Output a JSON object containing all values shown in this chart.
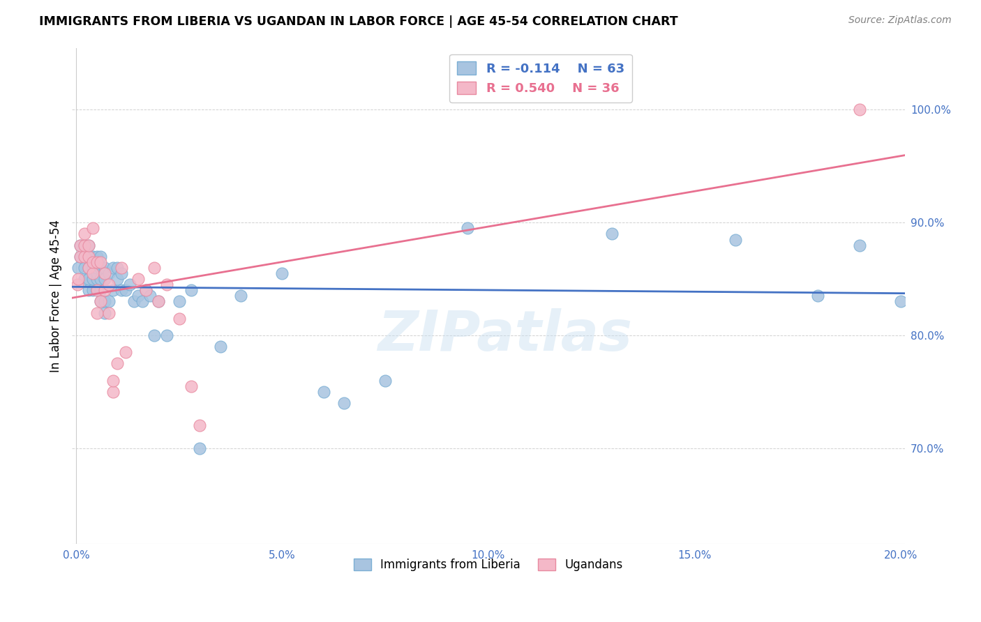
{
  "title": "IMMIGRANTS FROM LIBERIA VS UGANDAN IN LABOR FORCE | AGE 45-54 CORRELATION CHART",
  "source": "Source: ZipAtlas.com",
  "ylabel": "In Labor Force | Age 45-54",
  "xlim": [
    -0.001,
    0.201
  ],
  "ylim": [
    0.615,
    1.055
  ],
  "xtick_labels": [
    "0.0%",
    "5.0%",
    "10.0%",
    "15.0%",
    "20.0%"
  ],
  "xtick_vals": [
    0.0,
    0.05,
    0.1,
    0.15,
    0.2
  ],
  "ytick_labels": [
    "70.0%",
    "80.0%",
    "90.0%",
    "100.0%"
  ],
  "ytick_vals": [
    0.7,
    0.8,
    0.9,
    1.0
  ],
  "liberia_color": "#a8c4e0",
  "liberia_edge": "#7bafd4",
  "uganda_color": "#f4b8c8",
  "uganda_edge": "#e88aa0",
  "trendline_liberia_color": "#4472c4",
  "trendline_uganda_color": "#e87090",
  "legend_R_liberia": "-0.114",
  "legend_N_liberia": "63",
  "legend_R_uganda": "0.540",
  "legend_N_uganda": "36",
  "watermark": "ZIPatlas",
  "liberia_x": [
    0.0005,
    0.001,
    0.001,
    0.002,
    0.002,
    0.002,
    0.002,
    0.003,
    0.003,
    0.003,
    0.003,
    0.003,
    0.004,
    0.004,
    0.004,
    0.004,
    0.005,
    0.005,
    0.005,
    0.005,
    0.005,
    0.006,
    0.006,
    0.006,
    0.006,
    0.006,
    0.007,
    0.007,
    0.007,
    0.007,
    0.008,
    0.008,
    0.009,
    0.009,
    0.01,
    0.01,
    0.011,
    0.011,
    0.012,
    0.013,
    0.014,
    0.015,
    0.016,
    0.017,
    0.018,
    0.019,
    0.02,
    0.022,
    0.025,
    0.028,
    0.03,
    0.035,
    0.04,
    0.05,
    0.06,
    0.065,
    0.075,
    0.095,
    0.13,
    0.16,
    0.18,
    0.19,
    0.2
  ],
  "liberia_y": [
    0.86,
    0.87,
    0.88,
    0.85,
    0.86,
    0.87,
    0.88,
    0.84,
    0.85,
    0.86,
    0.87,
    0.88,
    0.84,
    0.85,
    0.86,
    0.87,
    0.84,
    0.85,
    0.855,
    0.86,
    0.87,
    0.83,
    0.84,
    0.85,
    0.86,
    0.87,
    0.82,
    0.83,
    0.85,
    0.86,
    0.83,
    0.855,
    0.84,
    0.86,
    0.85,
    0.86,
    0.84,
    0.855,
    0.84,
    0.845,
    0.83,
    0.835,
    0.83,
    0.84,
    0.835,
    0.8,
    0.83,
    0.8,
    0.83,
    0.84,
    0.7,
    0.79,
    0.835,
    0.855,
    0.75,
    0.74,
    0.76,
    0.895,
    0.89,
    0.885,
    0.835,
    0.88,
    0.83
  ],
  "uganda_x": [
    0.0003,
    0.0005,
    0.001,
    0.001,
    0.002,
    0.002,
    0.002,
    0.003,
    0.003,
    0.003,
    0.004,
    0.004,
    0.004,
    0.005,
    0.005,
    0.005,
    0.006,
    0.006,
    0.007,
    0.007,
    0.008,
    0.008,
    0.009,
    0.009,
    0.01,
    0.011,
    0.012,
    0.015,
    0.017,
    0.019,
    0.02,
    0.022,
    0.025,
    0.028,
    0.03,
    0.19
  ],
  "uganda_y": [
    0.845,
    0.85,
    0.87,
    0.88,
    0.87,
    0.88,
    0.89,
    0.86,
    0.87,
    0.88,
    0.855,
    0.865,
    0.895,
    0.82,
    0.84,
    0.865,
    0.83,
    0.865,
    0.84,
    0.855,
    0.82,
    0.845,
    0.75,
    0.76,
    0.775,
    0.86,
    0.785,
    0.85,
    0.84,
    0.86,
    0.83,
    0.845,
    0.815,
    0.755,
    0.72,
    1.0
  ]
}
